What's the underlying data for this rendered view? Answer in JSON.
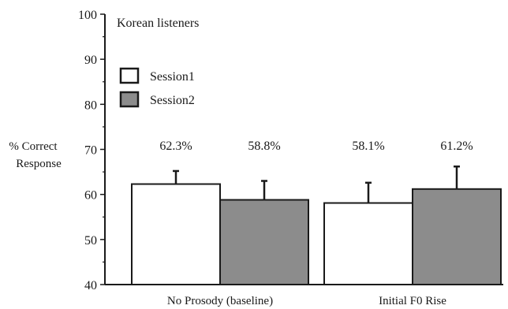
{
  "chart_data": {
    "type": "bar",
    "title": "Korean listeners",
    "ylabel_line1": "% Correct",
    "ylabel_line2": "Response",
    "xlabel": "",
    "ylim": [
      40,
      100
    ],
    "yticks": [
      40,
      50,
      60,
      70,
      80,
      90,
      100
    ],
    "ytick_labels": [
      "40",
      "50",
      "60",
      "70",
      "80",
      "90",
      "100"
    ],
    "categories": [
      "No Prosody (baseline)",
      "Initial F0 Rise"
    ],
    "series": [
      {
        "name": "Session1",
        "color": "#ffffff",
        "values": [
          62.3,
          58.1
        ],
        "errors": [
          2.9,
          4.5
        ],
        "labels": [
          "62.3%",
          "58.1%"
        ]
      },
      {
        "name": "Session2",
        "color": "#8c8c8c",
        "values": [
          58.8,
          61.2
        ],
        "errors": [
          4.2,
          5.0
        ],
        "labels": [
          "58.8%",
          "61.2%"
        ]
      }
    ],
    "legend_position": "top-left",
    "grid": false
  }
}
